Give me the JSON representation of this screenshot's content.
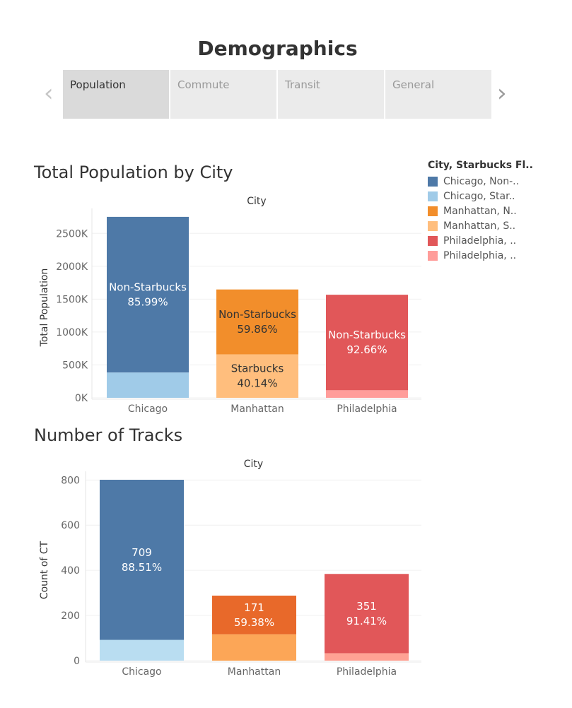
{
  "header": {
    "title": "Demographics",
    "prev_arrow": "‹",
    "next_arrow": "›",
    "tabs": [
      {
        "label": "Population",
        "active": true
      },
      {
        "label": "Commute",
        "active": false
      },
      {
        "label": "Transit",
        "active": false
      },
      {
        "label": "General",
        "active": false
      }
    ]
  },
  "legend": {
    "title": "City, Starbucks Fl..",
    "items": [
      {
        "label": "Chicago, Non-..",
        "color": "#4e79a7"
      },
      {
        "label": "Chicago, Star..",
        "color": "#a0cbe8"
      },
      {
        "label": "Manhattan, N..",
        "color": "#f28e2b"
      },
      {
        "label": "Manhattan, S..",
        "color": "#ffbe7d"
      },
      {
        "label": "Philadelphia, ..",
        "color": "#e15759"
      },
      {
        "label": "Philadelphia, ..",
        "color": "#ff9d9a"
      }
    ]
  },
  "chart_data": [
    {
      "type": "bar",
      "stacked": true,
      "title": "Total Population by City",
      "column_header": "City",
      "ylabel": "Total Population",
      "ylim": [
        0,
        2750000
      ],
      "yticks": [
        0,
        500000,
        1000000,
        1500000,
        2000000,
        2500000
      ],
      "ytick_labels": [
        "0K",
        "500K",
        "1000K",
        "1500K",
        "2000K",
        "2500K"
      ],
      "categories": [
        "Chicago",
        "Manhattan",
        "Philadelphia"
      ],
      "series": [
        {
          "name": "Starbucks",
          "values": [
            385000,
            661000,
            115000
          ],
          "colors": [
            "#a0cbe8",
            "#ffbe7d",
            "#ff9d9a"
          ],
          "labels": [
            "",
            "Starbucks\n40.14%",
            ""
          ],
          "label_colors": [
            "#ffffff",
            "#333333",
            "#ffffff"
          ]
        },
        {
          "name": "Non-Starbucks",
          "values": [
            2366000,
            986000,
            1452000
          ],
          "colors": [
            "#4e79a7",
            "#f28e2b",
            "#e15759"
          ],
          "labels": [
            "Non-Starbucks\n85.99%",
            "Non-Starbucks\n59.86%",
            "Non-Starbucks\n92.66%"
          ],
          "label_colors": [
            "#ffffff",
            "#333333",
            "#ffffff"
          ]
        }
      ]
    },
    {
      "type": "bar",
      "stacked": true,
      "title": "Number of Tracks",
      "column_header": "City",
      "ylabel": "Count of CT",
      "ylim": [
        0,
        801
      ],
      "yticks": [
        0,
        200,
        400,
        600,
        800
      ],
      "ytick_labels": [
        "0",
        "200",
        "400",
        "600",
        "800"
      ],
      "categories": [
        "Chicago",
        "Manhattan",
        "Philadelphia"
      ],
      "series": [
        {
          "name": "Starbucks",
          "values": [
            92,
            117,
            33
          ],
          "colors": [
            "#b9ddf1",
            "#fca657",
            "#ffa294"
          ],
          "labels": [
            "",
            "",
            ""
          ],
          "label_colors": [
            "#ffffff",
            "#ffffff",
            "#ffffff"
          ]
        },
        {
          "name": "Non-Starbucks",
          "values": [
            709,
            171,
            351
          ],
          "colors": [
            "#4e79a7",
            "#e8692a",
            "#e15759"
          ],
          "labels": [
            "709\n88.51%",
            "171\n59.38%",
            "351\n91.41%"
          ],
          "label_colors": [
            "#ffffff",
            "#ffffff",
            "#ffffff"
          ]
        }
      ]
    }
  ]
}
